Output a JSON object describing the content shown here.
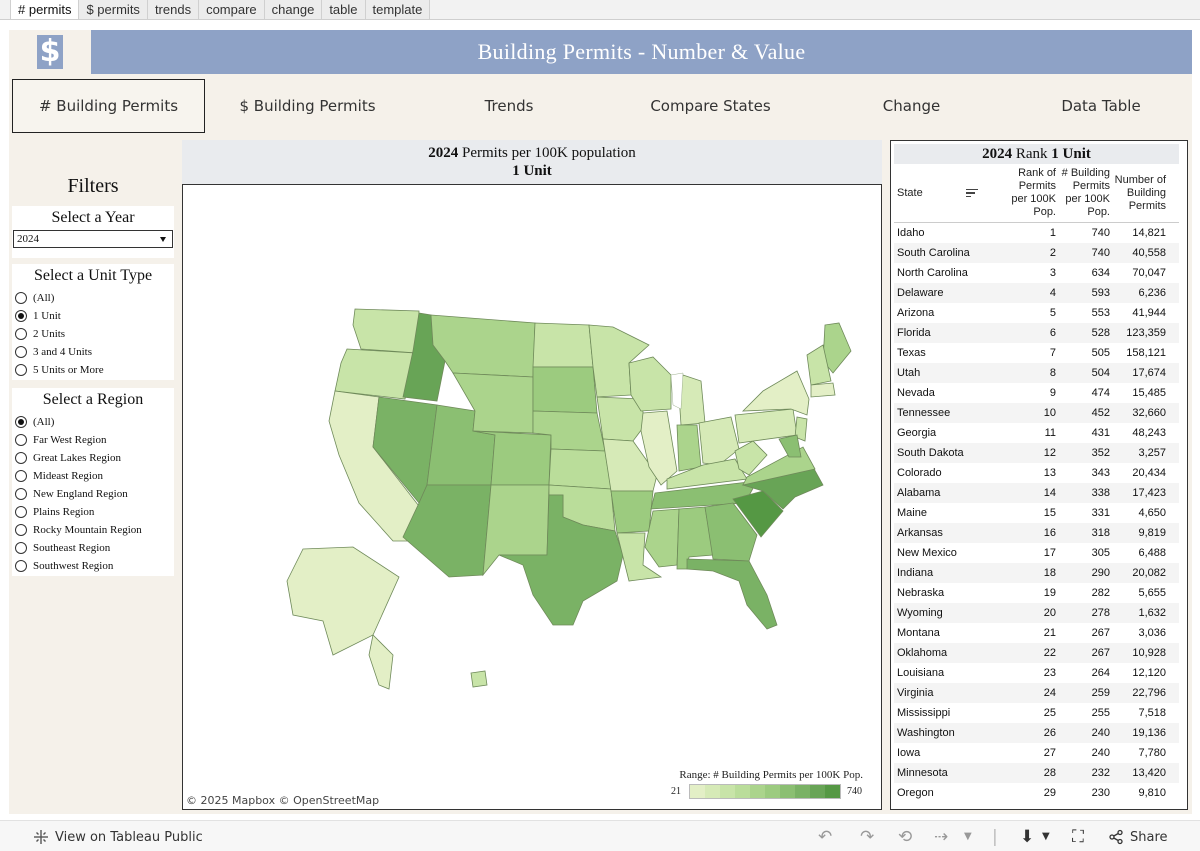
{
  "sheet_tabs": [
    "# permits",
    "$ permits",
    "trends",
    "compare",
    "change",
    "table",
    "template"
  ],
  "header": {
    "logo_glyph": "$",
    "title": "Building Permits - Number & Value"
  },
  "nav": [
    "# Building Permits",
    "$ Building Permits",
    "Trends",
    "Compare States",
    "Change",
    "Data Table"
  ],
  "filters": {
    "title": "Filters",
    "year": {
      "label": "Select a Year",
      "value": "2024"
    },
    "unit_type": {
      "label": "Select a Unit Type",
      "options": [
        "(All)",
        "1 Unit",
        "2 Units",
        "3 and 4 Units",
        "5 Units or More"
      ],
      "selected": "1 Unit"
    },
    "region": {
      "label": "Select a Region",
      "options": [
        "(All)",
        "Far West Region",
        "Great Lakes Region",
        "Mideast Region",
        "New England Region",
        "Plains Region",
        "Rocky Mountain Region",
        "Southeast Region",
        "Southwest Region"
      ],
      "selected": "(All)"
    }
  },
  "map": {
    "year": "2024",
    "title_rest": "Permits per 100K population",
    "subtitle": "1 Unit",
    "attribution": "© 2025 Mapbox  © OpenStreetMap",
    "legend": {
      "title": "Range: # Building Permits per 100K Pop.",
      "min": "21",
      "max": "740",
      "colors": [
        "#e3efc6",
        "#d6eab7",
        "#c8e4a8",
        "#badd9a",
        "#abd48c",
        "#9ccb7f",
        "#8bbf72",
        "#7ab265",
        "#68a456",
        "#559844"
      ]
    }
  },
  "rank_table": {
    "year": "2024",
    "title_rank": "Rank",
    "title_unit": "1 Unit",
    "columns": [
      "State",
      "Rank of Permits per 100K Pop.",
      "# Building Permits per 100K Pop.",
      "Number of Building Permits"
    ],
    "rows": [
      [
        "Idaho",
        "1",
        "740",
        "14,821"
      ],
      [
        "South Carolina",
        "2",
        "740",
        "40,558"
      ],
      [
        "North Carolina",
        "3",
        "634",
        "70,047"
      ],
      [
        "Delaware",
        "4",
        "593",
        "6,236"
      ],
      [
        "Arizona",
        "5",
        "553",
        "41,944"
      ],
      [
        "Florida",
        "6",
        "528",
        "123,359"
      ],
      [
        "Texas",
        "7",
        "505",
        "158,121"
      ],
      [
        "Utah",
        "8",
        "504",
        "17,674"
      ],
      [
        "Nevada",
        "9",
        "474",
        "15,485"
      ],
      [
        "Tennessee",
        "10",
        "452",
        "32,660"
      ],
      [
        "Georgia",
        "11",
        "431",
        "48,243"
      ],
      [
        "South Dakota",
        "12",
        "352",
        "3,257"
      ],
      [
        "Colorado",
        "13",
        "343",
        "20,434"
      ],
      [
        "Alabama",
        "14",
        "338",
        "17,423"
      ],
      [
        "Maine",
        "15",
        "331",
        "4,650"
      ],
      [
        "Arkansas",
        "16",
        "318",
        "9,819"
      ],
      [
        "New Mexico",
        "17",
        "305",
        "6,488"
      ],
      [
        "Indiana",
        "18",
        "290",
        "20,082"
      ],
      [
        "Nebraska",
        "19",
        "282",
        "5,655"
      ],
      [
        "Wyoming",
        "20",
        "278",
        "1,632"
      ],
      [
        "Montana",
        "21",
        "267",
        "3,036"
      ],
      [
        "Oklahoma",
        "22",
        "267",
        "10,928"
      ],
      [
        "Louisiana",
        "23",
        "264",
        "12,120"
      ],
      [
        "Virginia",
        "24",
        "259",
        "22,796"
      ],
      [
        "Mississippi",
        "25",
        "255",
        "7,518"
      ],
      [
        "Washington",
        "26",
        "240",
        "19,136"
      ],
      [
        "Iowa",
        "27",
        "240",
        "7,780"
      ],
      [
        "Minnesota",
        "28",
        "232",
        "13,420"
      ],
      [
        "Oregon",
        "29",
        "230",
        "9,810"
      ]
    ]
  },
  "bottom_bar": {
    "view_label": "View on Tableau Public",
    "share_label": "Share"
  }
}
